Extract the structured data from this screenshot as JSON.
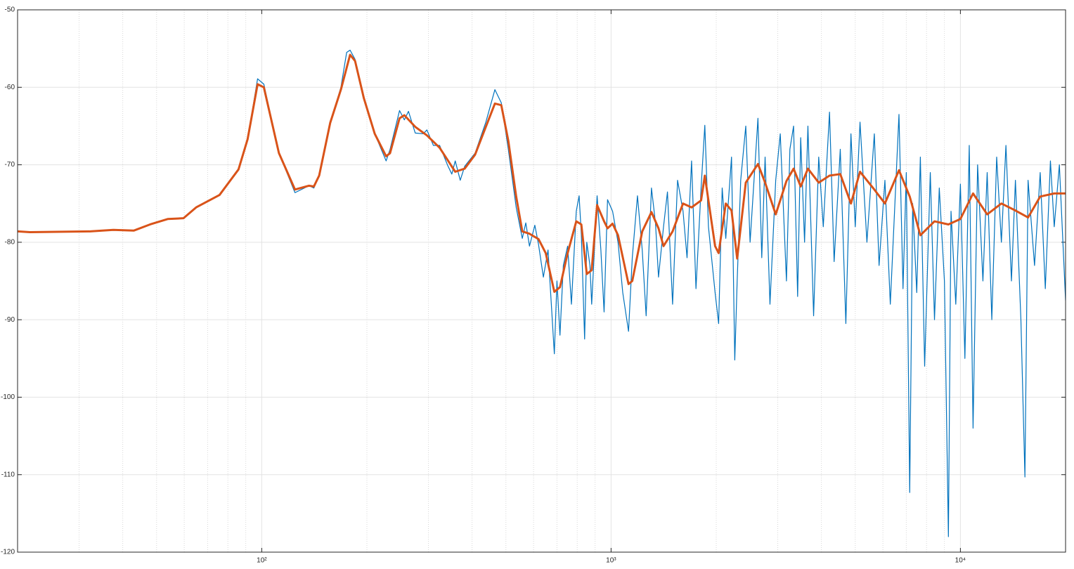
{
  "chart_data": {
    "type": "line",
    "xscale": "log",
    "grid": true,
    "minor_grid": true,
    "xlim": [
      20,
      20000
    ],
    "ylim": [
      -120,
      -50
    ],
    "xticks": [
      {
        "value": 100,
        "label": "10²"
      },
      {
        "value": 1000,
        "label": "10³"
      },
      {
        "value": 10000,
        "label": "10⁴"
      }
    ],
    "xminorticks": [
      30,
      40,
      50,
      60,
      70,
      80,
      90,
      200,
      300,
      400,
      500,
      600,
      700,
      800,
      900,
      2000,
      3000,
      4000,
      5000,
      6000,
      7000,
      8000,
      9000
    ],
    "yticks": [
      -50,
      -60,
      -70,
      -80,
      -90,
      -100,
      -110,
      -120
    ],
    "series": [
      {
        "color": "#0072bd",
        "width": 1.2,
        "x": [
          20,
          21.7,
          32.3,
          37.6,
          43,
          47.9,
          53.8,
          59.7,
          64.9,
          75.7,
          85.8,
          91.1,
          97.3,
          101.4,
          112,
          124.5,
          136.6,
          141,
          146,
          157,
          168.5,
          175,
          179,
          185,
          196,
          210.6,
          227,
          233,
          248,
          256,
          263,
          275,
          290,
          297,
          310,
          323,
          340,
          350,
          358,
          370,
          381,
          408,
          438,
          465,
          485,
          508,
          535,
          557,
          570,
          584,
          605,
          620,
          640,
          660,
          688,
          700,
          714,
          730,
          751,
          770,
          795,
          810,
          822,
          840,
          852,
          870,
          880,
          912,
          935,
          955,
          977,
          1010,
          1047,
          1080,
          1122,
          1150,
          1190,
          1228,
          1260,
          1305,
          1340,
          1367,
          1413,
          1450,
          1500,
          1550,
          1607,
          1650,
          1700,
          1750,
          1810,
          1855,
          1900,
          1985,
          2032,
          2080,
          2130,
          2212,
          2260,
          2296,
          2350,
          2430,
          2500,
          2633,
          2700,
          2760,
          2850,
          2960,
          3050,
          3177,
          3250,
          3330,
          3420,
          3490,
          3580,
          3660,
          3800,
          3930,
          4050,
          4220,
          4350,
          4530,
          4700,
          4860,
          5000,
          5160,
          5400,
          5670,
          5850,
          6080,
          6300,
          6670,
          6850,
          7000,
          7160,
          7300,
          7500,
          7680,
          7900,
          8200,
          8430,
          8700,
          9000,
          9240,
          9400,
          9700,
          10000,
          10300,
          10600,
          10870,
          11200,
          11600,
          11930,
          12300,
          12700,
          13100,
          13500,
          14000,
          14370,
          14900,
          15300,
          15620,
          16300,
          16920,
          17500,
          18100,
          18560,
          19200,
          20000
        ],
        "values": [
          -78.6,
          -78.7,
          -78.6,
          -78.4,
          -78.5,
          -77.7,
          -77.0,
          -76.9,
          -75.5,
          -73.9,
          -70.6,
          -66.7,
          -58.9,
          -59.6,
          -68.5,
          -73.6,
          -72.7,
          -73.0,
          -71.4,
          -64.6,
          -60.0,
          -55.5,
          -55.2,
          -56.4,
          -61.4,
          -66.0,
          -69.5,
          -68.0,
          -63.0,
          -64.2,
          -63.1,
          -65.9,
          -66.0,
          -65.5,
          -67.5,
          -67.5,
          -70.0,
          -71.2,
          -69.5,
          -72.0,
          -70.2,
          -68.5,
          -64.5,
          -60.3,
          -62.0,
          -68.0,
          -75.5,
          -79.5,
          -77.5,
          -80.5,
          -77.8,
          -80.3,
          -84.5,
          -81.0,
          -94.4,
          -85.0,
          -92.0,
          -83.0,
          -80.5,
          -88.0,
          -76.0,
          -74.0,
          -79.0,
          -92.5,
          -80.0,
          -83.0,
          -88.0,
          -74.0,
          -81.0,
          -89.0,
          -74.5,
          -76.0,
          -80.0,
          -86.5,
          -91.5,
          -82.0,
          -74.0,
          -81.0,
          -89.5,
          -73.0,
          -77.5,
          -84.5,
          -78.0,
          -73.5,
          -88.0,
          -72.0,
          -76.0,
          -82.0,
          -69.5,
          -86.0,
          -73.0,
          -64.9,
          -78.0,
          -86.5,
          -90.5,
          -73.0,
          -79.5,
          -69.0,
          -95.2,
          -85.0,
          -72.0,
          -65.0,
          -80.0,
          -64.0,
          -82.0,
          -69.0,
          -88.0,
          -72.0,
          -66.0,
          -85.0,
          -68.0,
          -65.0,
          -87.0,
          -66.5,
          -80.0,
          -65.0,
          -89.5,
          -69.0,
          -78.0,
          -63.2,
          -82.5,
          -68.0,
          -90.5,
          -66.0,
          -78.0,
          -64.5,
          -80.0,
          -66.0,
          -83.0,
          -72.0,
          -88.0,
          -63.5,
          -86.0,
          -71.0,
          -112.3,
          -75.0,
          -86.5,
          -69.0,
          -96.0,
          -71.0,
          -90.0,
          -73.0,
          -85.0,
          -118.0,
          -76.0,
          -88.0,
          -72.5,
          -95.0,
          -67.5,
          -104.0,
          -70.0,
          -85.0,
          -71.0,
          -90.0,
          -69.0,
          -80.0,
          -67.5,
          -85.0,
          -72.0,
          -90.0,
          -110.3,
          -72.0,
          -83.0,
          -71.0,
          -86.0,
          -69.5,
          -78.0,
          -70.0,
          -87.5
        ]
      },
      {
        "color": "#d95319",
        "width": 3,
        "x": [
          20,
          21.7,
          32.3,
          37.6,
          43,
          47.9,
          53.8,
          59.7,
          64.9,
          75.7,
          85.8,
          91.1,
          97.3,
          101.4,
          112,
          124.5,
          136.6,
          141,
          146,
          157,
          168.5,
          179,
          185,
          196,
          210.6,
          227,
          233,
          248,
          256,
          275,
          297,
          323,
          358,
          381,
          408,
          438,
          465,
          485,
          508,
          535,
          557,
          584,
          620,
          650,
          688,
          714,
          751,
          795,
          822,
          852,
          880,
          912,
          955,
          977,
          1010,
          1047,
          1122,
          1150,
          1228,
          1305,
          1367,
          1413,
          1500,
          1607,
          1700,
          1810,
          1855,
          1985,
          2032,
          2130,
          2212,
          2296,
          2430,
          2633,
          2760,
          2960,
          3177,
          3330,
          3490,
          3660,
          3930,
          4220,
          4530,
          4860,
          5160,
          5670,
          6080,
          6670,
          7160,
          7680,
          8430,
          9240,
          10000,
          10870,
          11930,
          13100,
          14370,
          15620,
          16920,
          18560,
          20000
        ],
        "values": [
          -78.6,
          -78.7,
          -78.6,
          -78.4,
          -78.5,
          -77.7,
          -77.0,
          -76.9,
          -75.5,
          -73.9,
          -70.6,
          -66.7,
          -59.6,
          -60.0,
          -68.5,
          -73.2,
          -72.7,
          -72.8,
          -71.4,
          -64.6,
          -60.3,
          -55.8,
          -56.6,
          -61.4,
          -66.0,
          -68.9,
          -68.5,
          -64.0,
          -63.6,
          -65.1,
          -66.2,
          -67.8,
          -70.9,
          -70.5,
          -68.7,
          -65.1,
          -62.1,
          -62.3,
          -66.9,
          -74.1,
          -78.6,
          -78.9,
          -79.6,
          -81.4,
          -86.4,
          -85.8,
          -81.4,
          -77.3,
          -77.7,
          -84.1,
          -83.6,
          -75.2,
          -77.3,
          -78.2,
          -77.6,
          -79.1,
          -85.4,
          -85.0,
          -78.6,
          -76.1,
          -78.2,
          -80.5,
          -78.6,
          -75.0,
          -75.5,
          -74.6,
          -71.4,
          -80.5,
          -81.4,
          -75.0,
          -75.9,
          -82.1,
          -72.3,
          -69.9,
          -72.3,
          -76.4,
          -72.1,
          -70.5,
          -72.8,
          -70.5,
          -72.3,
          -71.4,
          -71.2,
          -75.0,
          -70.9,
          -73.2,
          -75.0,
          -70.7,
          -74.1,
          -79.1,
          -77.3,
          -77.7,
          -77.0,
          -73.7,
          -76.4,
          -75.0,
          -75.9,
          -76.8,
          -74.1,
          -73.7,
          -73.7
        ]
      }
    ]
  }
}
